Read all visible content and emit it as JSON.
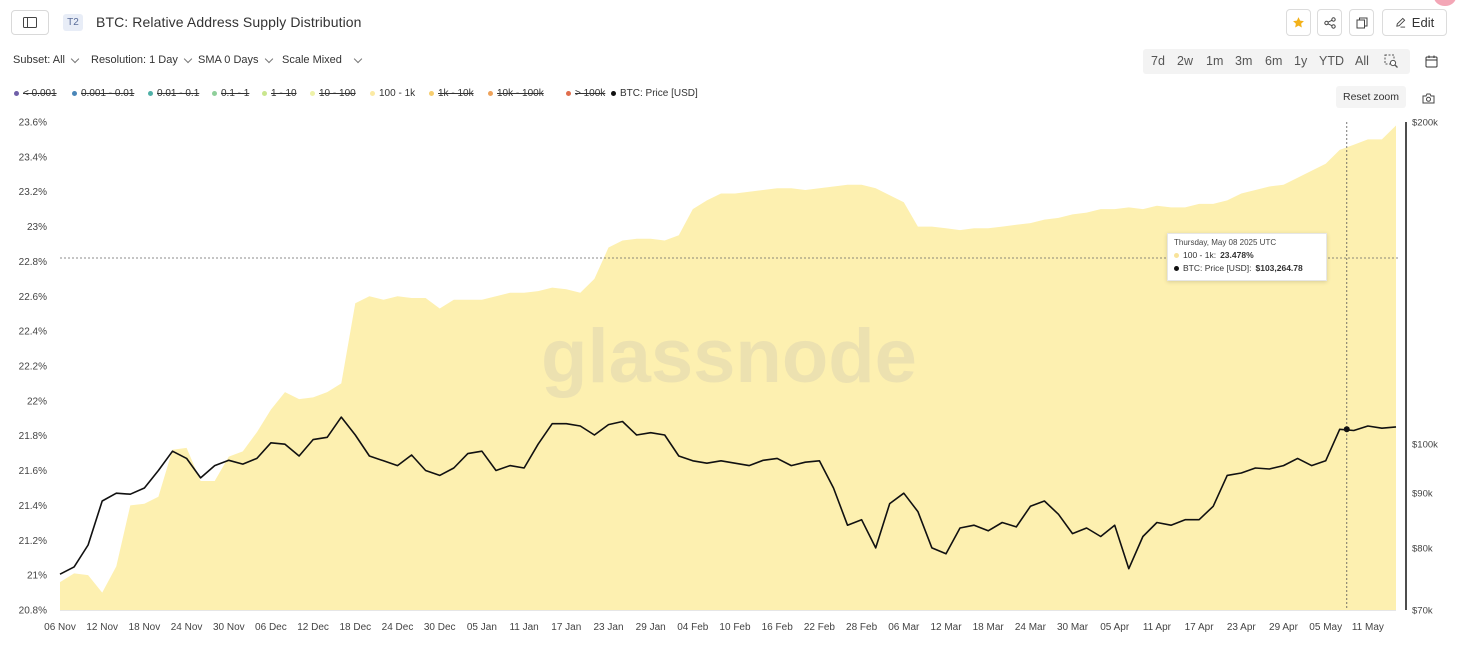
{
  "header": {
    "tier_badge": "T2",
    "title": "BTC: Relative Address Supply Distribution",
    "edit_label": "Edit"
  },
  "toolbar": {
    "subset": "Subset: All",
    "resolution": "Resolution: 1 Day",
    "sma": "SMA 0 Days",
    "scale": "Scale Mixed",
    "ranges": [
      "7d",
      "2w",
      "1m",
      "3m",
      "6m",
      "1y",
      "YTD",
      "All"
    ]
  },
  "legend": {
    "items": [
      {
        "label": "< 0.001",
        "color": "#6f5fa8",
        "active": false
      },
      {
        "label": "0.001 - 0.01",
        "color": "#4a86b8",
        "active": false
      },
      {
        "label": "0.01 - 0.1",
        "color": "#4fb0a7",
        "active": false
      },
      {
        "label": "0.1 - 1",
        "color": "#8fcf9a",
        "active": false
      },
      {
        "label": "1 - 10",
        "color": "#c9e68e",
        "active": false
      },
      {
        "label": "10 - 100",
        "color": "#eef2a8",
        "active": false
      },
      {
        "label": "100 - 1k",
        "color": "#fbeaa4",
        "active": true
      },
      {
        "label": "1k - 10k",
        "color": "#f6cd6e",
        "active": false
      },
      {
        "label": "10k - 100k",
        "color": "#eea25a",
        "active": false
      },
      {
        "label": "> 100k",
        "color": "#e06d4c",
        "active": false
      },
      {
        "label": "BTC: Price [USD]",
        "color": "#111111",
        "active": true
      }
    ],
    "reset_zoom": "Reset zoom"
  },
  "tooltip": {
    "date": "Thursday, May 08 2025 UTC",
    "series1_label": "100 - 1k:",
    "series1_value": "23.478%",
    "series2_label": "BTC: Price [USD]:",
    "series2_value": "$103,264.78"
  },
  "watermark": "glassnode",
  "chart_data": {
    "type": "area",
    "y_left": {
      "range": [
        20.8,
        23.6
      ],
      "ticks": [
        "23.6%",
        "23.4%",
        "23.2%",
        "23%",
        "22.8%",
        "22.6%",
        "22.4%",
        "22.2%",
        "22%",
        "21.8%",
        "21.6%",
        "21.4%",
        "21.2%",
        "21%",
        "20.8%"
      ],
      "tick_values": [
        23.6,
        23.4,
        23.2,
        23.0,
        22.8,
        22.6,
        22.4,
        22.2,
        22.0,
        21.8,
        21.6,
        21.4,
        21.2,
        21.0,
        20.8
      ]
    },
    "y_right": {
      "scale": "log",
      "range": [
        70000,
        200000
      ],
      "ticks": [
        "$200k",
        "$100k",
        "$90k",
        "$80k",
        "$70k"
      ],
      "tick_values": [
        200000,
        100000,
        90000,
        80000,
        70000
      ]
    },
    "x_axis": {
      "labels": [
        "06 Nov",
        "12 Nov",
        "18 Nov",
        "24 Nov",
        "30 Nov",
        "06 Dec",
        "12 Dec",
        "18 Dec",
        "24 Dec",
        "30 Dec",
        "05 Jan",
        "11 Jan",
        "17 Jan",
        "23 Jan",
        "29 Jan",
        "04 Feb",
        "10 Feb",
        "16 Feb",
        "22 Feb",
        "28 Feb",
        "06 Mar",
        "12 Mar",
        "18 Mar",
        "24 Mar",
        "30 Mar",
        "05 Apr",
        "11 Apr",
        "17 Apr",
        "23 Apr",
        "29 Apr",
        "05 May",
        "11 May"
      ]
    },
    "series": [
      {
        "name": "100 - 1k",
        "axis": "left",
        "color": "#fdf0b0",
        "dates": [
          "2024-11-06",
          "2024-11-08",
          "2024-11-10",
          "2024-11-12",
          "2024-11-14",
          "2024-11-16",
          "2024-11-18",
          "2024-11-20",
          "2024-11-22",
          "2024-11-24",
          "2024-11-26",
          "2024-11-28",
          "2024-11-30",
          "2024-12-02",
          "2024-12-04",
          "2024-12-06",
          "2024-12-08",
          "2024-12-10",
          "2024-12-12",
          "2024-12-14",
          "2024-12-16",
          "2024-12-18",
          "2024-12-20",
          "2024-12-22",
          "2024-12-24",
          "2024-12-26",
          "2024-12-28",
          "2024-12-30",
          "2025-01-01",
          "2025-01-03",
          "2025-01-05",
          "2025-01-07",
          "2025-01-09",
          "2025-01-11",
          "2025-01-13",
          "2025-01-15",
          "2025-01-17",
          "2025-01-19",
          "2025-01-21",
          "2025-01-23",
          "2025-01-25",
          "2025-01-27",
          "2025-01-29",
          "2025-01-31",
          "2025-02-02",
          "2025-02-04",
          "2025-02-06",
          "2025-02-08",
          "2025-02-10",
          "2025-02-12",
          "2025-02-14",
          "2025-02-16",
          "2025-02-18",
          "2025-02-20",
          "2025-02-22",
          "2025-02-24",
          "2025-02-26",
          "2025-02-28",
          "2025-03-02",
          "2025-03-04",
          "2025-03-06",
          "2025-03-08",
          "2025-03-10",
          "2025-03-12",
          "2025-03-14",
          "2025-03-16",
          "2025-03-18",
          "2025-03-20",
          "2025-03-22",
          "2025-03-24",
          "2025-03-26",
          "2025-03-28",
          "2025-03-30",
          "2025-04-01",
          "2025-04-03",
          "2025-04-05",
          "2025-04-07",
          "2025-04-09",
          "2025-04-11",
          "2025-04-13",
          "2025-04-15",
          "2025-04-17",
          "2025-04-19",
          "2025-04-21",
          "2025-04-23",
          "2025-04-25",
          "2025-04-27",
          "2025-04-29",
          "2025-05-01",
          "2025-05-03",
          "2025-05-05",
          "2025-05-07",
          "2025-05-09",
          "2025-05-11",
          "2025-05-13",
          "2025-05-15"
        ],
        "values": [
          20.96,
          21.01,
          21.0,
          20.9,
          21.05,
          21.4,
          21.41,
          21.45,
          21.72,
          21.73,
          21.54,
          21.54,
          21.68,
          21.71,
          21.82,
          21.95,
          22.05,
          22.01,
          22.02,
          22.05,
          22.1,
          22.56,
          22.6,
          22.58,
          22.6,
          22.59,
          22.59,
          22.53,
          22.58,
          22.58,
          22.58,
          22.6,
          22.62,
          22.62,
          22.63,
          22.65,
          22.64,
          22.62,
          22.7,
          22.88,
          22.92,
          22.93,
          22.93,
          22.92,
          22.95,
          23.1,
          23.15,
          23.19,
          23.19,
          23.2,
          23.21,
          23.22,
          23.22,
          23.21,
          23.22,
          23.23,
          23.24,
          23.24,
          23.22,
          23.18,
          23.14,
          23.0,
          23.0,
          22.99,
          22.98,
          22.99,
          22.99,
          23.0,
          23.01,
          23.02,
          23.04,
          23.05,
          23.07,
          23.08,
          23.1,
          23.1,
          23.11,
          23.1,
          23.12,
          23.11,
          23.11,
          23.13,
          23.13,
          23.15,
          23.19,
          23.21,
          23.23,
          23.24,
          23.28,
          23.32,
          23.36,
          23.44,
          23.47,
          23.5,
          23.5,
          23.58
        ]
      },
      {
        "name": "BTC: Price [USD]",
        "axis": "right",
        "color": "#111111",
        "dates": [
          "2024-11-06",
          "2024-11-08",
          "2024-11-10",
          "2024-11-12",
          "2024-11-14",
          "2024-11-16",
          "2024-11-18",
          "2024-11-20",
          "2024-11-22",
          "2024-11-24",
          "2024-11-26",
          "2024-11-28",
          "2024-11-30",
          "2024-12-02",
          "2024-12-04",
          "2024-12-06",
          "2024-12-08",
          "2024-12-10",
          "2024-12-12",
          "2024-12-14",
          "2024-12-16",
          "2024-12-18",
          "2024-12-20",
          "2024-12-22",
          "2024-12-24",
          "2024-12-26",
          "2024-12-28",
          "2024-12-30",
          "2025-01-01",
          "2025-01-03",
          "2025-01-05",
          "2025-01-07",
          "2025-01-09",
          "2025-01-11",
          "2025-01-13",
          "2025-01-15",
          "2025-01-17",
          "2025-01-19",
          "2025-01-21",
          "2025-01-23",
          "2025-01-25",
          "2025-01-27",
          "2025-01-29",
          "2025-01-31",
          "2025-02-02",
          "2025-02-04",
          "2025-02-06",
          "2025-02-08",
          "2025-02-10",
          "2025-02-12",
          "2025-02-14",
          "2025-02-16",
          "2025-02-18",
          "2025-02-20",
          "2025-02-22",
          "2025-02-24",
          "2025-02-26",
          "2025-02-28",
          "2025-03-02",
          "2025-03-04",
          "2025-03-06",
          "2025-03-08",
          "2025-03-10",
          "2025-03-12",
          "2025-03-14",
          "2025-03-16",
          "2025-03-18",
          "2025-03-20",
          "2025-03-22",
          "2025-03-24",
          "2025-03-26",
          "2025-03-28",
          "2025-03-30",
          "2025-04-01",
          "2025-04-03",
          "2025-04-05",
          "2025-04-07",
          "2025-04-09",
          "2025-04-11",
          "2025-04-13",
          "2025-04-15",
          "2025-04-17",
          "2025-04-19",
          "2025-04-21",
          "2025-04-23",
          "2025-04-25",
          "2025-04-27",
          "2025-04-29",
          "2025-05-01",
          "2025-05-03",
          "2025-05-05",
          "2025-05-07",
          "2025-05-09",
          "2025-05-11",
          "2025-05-13",
          "2025-05-15"
        ],
        "values": [
          75600,
          76800,
          80500,
          88500,
          90000,
          89800,
          91000,
          94500,
          98500,
          97000,
          93000,
          95500,
          96600,
          95800,
          97000,
          100300,
          100000,
          97500,
          101000,
          101500,
          106000,
          102000,
          97500,
          96500,
          95500,
          97700,
          94500,
          93500,
          95000,
          98000,
          98500,
          94500,
          95500,
          95000,
          100000,
          104500,
          104500,
          104000,
          102000,
          104300,
          105000,
          102000,
          102500,
          102000,
          97500,
          96500,
          96000,
          96500,
          96000,
          95500,
          96600,
          97000,
          95500,
          96200,
          96500,
          91000,
          84000,
          85000,
          80000,
          88000,
          90000,
          86500,
          80000,
          79000,
          83500,
          84000,
          83000,
          84500,
          83700,
          87500,
          88500,
          86000,
          82500,
          83500,
          82000,
          84000,
          76500,
          82000,
          84500,
          84000,
          85000,
          85000,
          87500,
          93500,
          94000,
          95000,
          94800,
          95500,
          97000,
          95500,
          96500,
          103264.78,
          103000,
          104000,
          103500,
          103800
        ]
      }
    ],
    "highlight": {
      "date": "2025-05-08",
      "value_left": 23.478,
      "value_right": 103264.78
    },
    "legend_position": "top-left",
    "grid": false
  }
}
